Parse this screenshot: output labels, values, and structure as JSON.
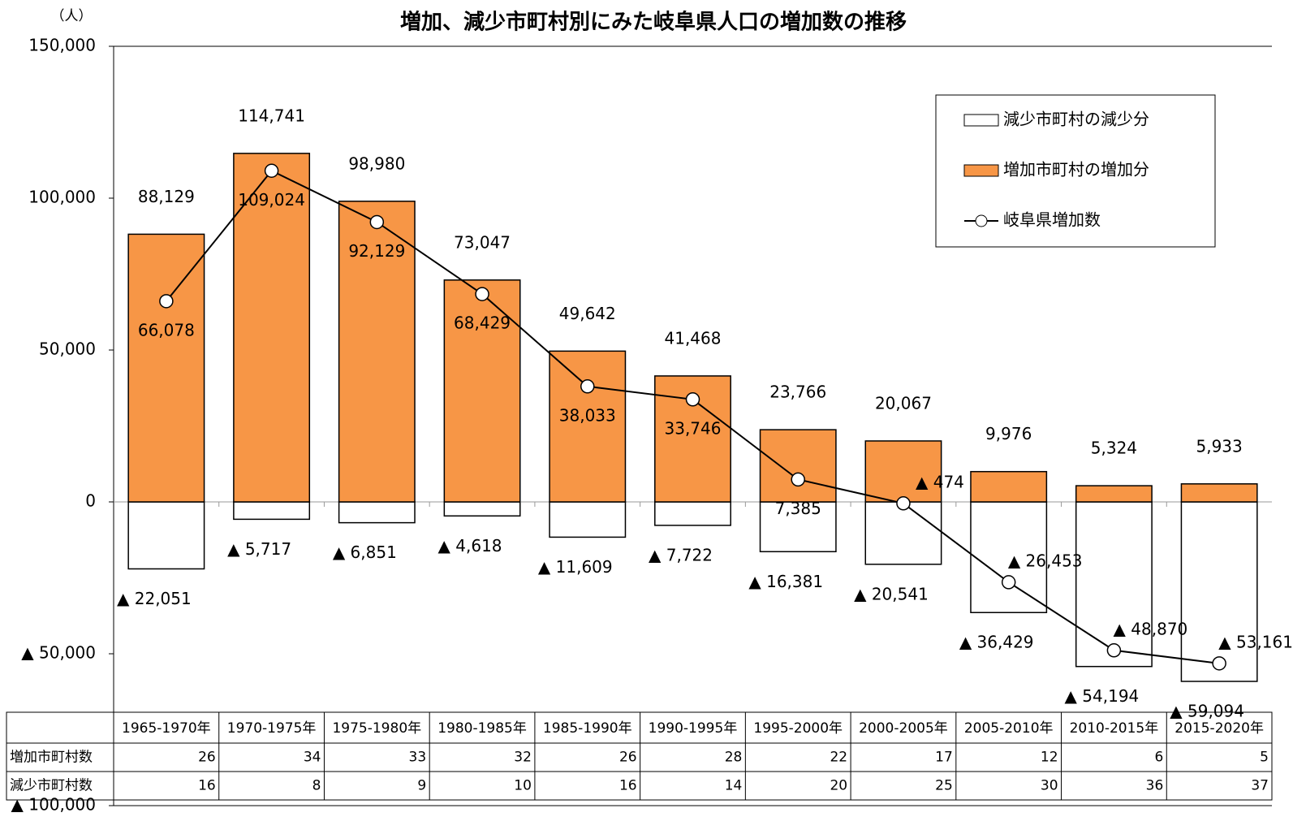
{
  "chart_data": {
    "type": "bar-line",
    "title": "増加、減少市町村別にみた岐阜県人口の増加数の推移",
    "y_label": "（人）",
    "categories": [
      "1965-1970年",
      "1970-1975年",
      "1975-1980年",
      "1980-1985年",
      "1985-1990年",
      "1990-1995年",
      "1995-2000年",
      "2000-2005年",
      "2005-2010年",
      "2010-2015年",
      "2015-2020年"
    ],
    "ylim": [
      -100000,
      150000
    ],
    "yticks": [
      {
        "value": -100000,
        "label": "▲ 100,000"
      },
      {
        "value": -50000,
        "label": "▲ 50,000"
      },
      0,
      {
        "value": 50000,
        "label": "50,000"
      },
      {
        "value": 100000,
        "label": "100,000"
      },
      {
        "value": 150000,
        "label": "150,000"
      }
    ],
    "grid": false,
    "legend": "upper right",
    "series": [
      {
        "name": "減少市町村の減少分",
        "kind": "bar",
        "color": "#ffffff",
        "values": [
          -22051,
          -5717,
          -6851,
          -4618,
          -11609,
          -7722,
          -16381,
          -20541,
          -36429,
          -54194,
          -59094
        ],
        "value_labels": [
          "▲ 22,051",
          "▲ 5,717",
          "▲ 6,851",
          "▲ 4,618",
          "▲ 11,609",
          "▲ 7,722",
          "▲ 16,381",
          "▲ 20,541",
          "▲ 36,429",
          "▲ 54,194",
          "▲ 59,094"
        ]
      },
      {
        "name": "増加市町村の増加分",
        "kind": "bar",
        "color": "#f79646",
        "values": [
          88129,
          114741,
          98980,
          73047,
          49642,
          41468,
          23766,
          20067,
          9976,
          5324,
          5933
        ],
        "value_labels": [
          "88,129",
          "114,741",
          "98,980",
          "73,047",
          "49,642",
          "41,468",
          "23,766",
          "20,067",
          "9,976",
          "5,324",
          "5,933"
        ]
      },
      {
        "name": "岐阜県増加数",
        "kind": "line",
        "color": "#000000",
        "values": [
          66078,
          109024,
          92129,
          68429,
          38033,
          33746,
          7385,
          -474,
          -26453,
          -48870,
          -53161
        ],
        "value_labels": [
          "66,078",
          "109,024",
          "92,129",
          "68,429",
          "38,033",
          "33,746",
          "7,385",
          "▲ 474",
          "▲ 26,453",
          "▲ 48,870",
          "▲ 53,161"
        ]
      }
    ],
    "table": {
      "rows": [
        {
          "name": "増加市町村数",
          "values": [
            26,
            34,
            33,
            32,
            26,
            28,
            22,
            17,
            12,
            6,
            5
          ]
        },
        {
          "name": "減少市町村数",
          "values": [
            16,
            8,
            9,
            10,
            16,
            14,
            20,
            25,
            30,
            36,
            37
          ]
        }
      ]
    }
  }
}
